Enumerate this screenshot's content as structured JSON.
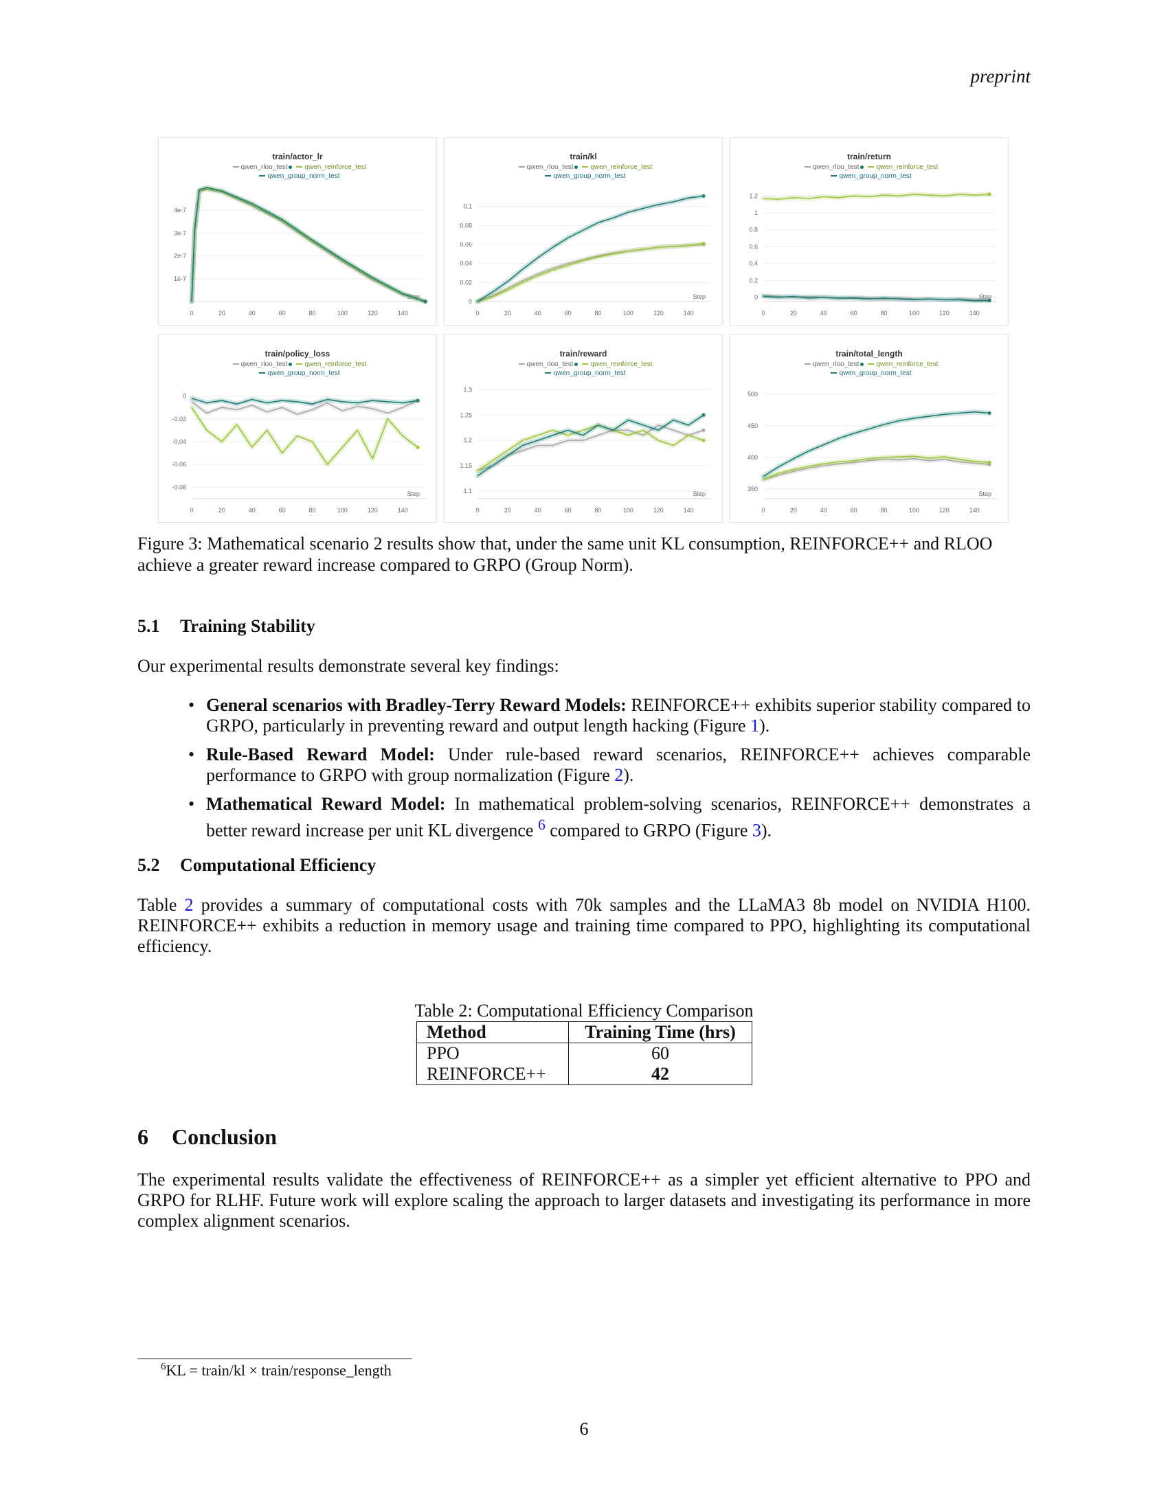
{
  "header": {
    "running_head": "preprint"
  },
  "figure": {
    "legend": {
      "rloo": "qwen_rloo_test",
      "reinforce": "qwen_reinforce_test",
      "group_norm": "qwen_group_norm_test"
    },
    "colors": {
      "rloo": "#a8a8a8",
      "reinforce": "#9cc53d",
      "group_norm": "#1c7d72"
    },
    "step_label": "Step",
    "caption": "Figure 3: Mathematical scenario 2 results show that, under the same unit KL consumption, REINFORCE++ and RLOO achieve a greater reward increase compared to GRPO (Group Norm)."
  },
  "chart_data": [
    {
      "type": "line",
      "title": "train/actor_lr",
      "xlabel": "Step",
      "xlim": [
        0,
        155
      ],
      "ylim": [
        0,
        5e-07
      ],
      "xticks": [
        "0",
        "20",
        "40",
        "60",
        "80",
        "100",
        "120",
        "140"
      ],
      "yticks": [
        1e-07,
        2e-07,
        3e-07,
        4e-07
      ],
      "ytick_labels": [
        "1e-7",
        "2e-7",
        "3e-7",
        "4e-7"
      ],
      "x": [
        0,
        2,
        5,
        10,
        20,
        40,
        60,
        80,
        100,
        120,
        140,
        155
      ],
      "series": [
        {
          "name": "qwen_rloo_test",
          "values": [
            0,
            3e-07,
            4.82e-07,
            4.92e-07,
            4.8e-07,
            4.2e-07,
            3.5e-07,
            2.6e-07,
            1.75e-07,
            9.5e-08,
            3e-08,
            0
          ]
        },
        {
          "name": "qwen_reinforce_test",
          "values": [
            0,
            3.1e-07,
            4.85e-07,
            4.95e-07,
            4.82e-07,
            4.25e-07,
            3.55e-07,
            2.65e-07,
            1.8e-07,
            1e-07,
            3.2e-08,
            0
          ]
        },
        {
          "name": "qwen_group_norm_test",
          "values": [
            0,
            3.2e-07,
            4.9e-07,
            5e-07,
            4.85e-07,
            4.3e-07,
            3.6e-07,
            2.7e-07,
            1.85e-07,
            1.05e-07,
            3.5e-08,
            0
          ]
        }
      ]
    },
    {
      "type": "line",
      "title": "train/kl",
      "xlabel": "Step",
      "xlim": [
        0,
        155
      ],
      "ylim": [
        0,
        0.12
      ],
      "xticks": [
        "0",
        "20",
        "40",
        "60",
        "80",
        "100",
        "120",
        "140"
      ],
      "yticks": [
        0,
        0.02,
        0.04,
        0.06,
        0.08,
        0.1
      ],
      "ytick_labels": [
        "0",
        "0.02",
        "0.04",
        "0.06",
        "0.08",
        "0.1"
      ],
      "x": [
        0,
        10,
        20,
        30,
        40,
        50,
        60,
        70,
        80,
        90,
        100,
        110,
        120,
        130,
        140,
        150
      ],
      "series": [
        {
          "name": "qwen_rloo_test",
          "values": [
            0,
            0.006,
            0.014,
            0.022,
            0.029,
            0.035,
            0.04,
            0.044,
            0.048,
            0.051,
            0.053,
            0.055,
            0.057,
            0.058,
            0.059,
            0.06
          ]
        },
        {
          "name": "qwen_reinforce_test",
          "values": [
            0,
            0.005,
            0.012,
            0.02,
            0.027,
            0.033,
            0.038,
            0.043,
            0.047,
            0.05,
            0.053,
            0.055,
            0.057,
            0.058,
            0.059,
            0.061
          ]
        },
        {
          "name": "qwen_group_norm_test",
          "values": [
            0,
            0.01,
            0.021,
            0.034,
            0.046,
            0.057,
            0.067,
            0.075,
            0.083,
            0.088,
            0.094,
            0.098,
            0.102,
            0.105,
            0.109,
            0.111
          ]
        }
      ]
    },
    {
      "type": "line",
      "title": "train/return",
      "xlabel": "Step",
      "xlim": [
        0,
        155
      ],
      "ylim": [
        -0.05,
        1.3
      ],
      "xticks": [
        "0",
        "20",
        "40",
        "60",
        "80",
        "100",
        "120",
        "140"
      ],
      "yticks": [
        0,
        0.2,
        0.4,
        0.6,
        0.8,
        1,
        1.2
      ],
      "ytick_labels": [
        "0",
        "0.2",
        "0.4",
        "0.6",
        "0.8",
        "1",
        "1.2"
      ],
      "x": [
        0,
        10,
        20,
        30,
        40,
        50,
        60,
        70,
        80,
        90,
        100,
        110,
        120,
        130,
        140,
        150
      ],
      "series": [
        {
          "name": "qwen_rloo_test",
          "values": [
            0.02,
            0.01,
            0.0,
            0.01,
            0.0,
            -0.01,
            0.0,
            -0.01,
            -0.02,
            -0.01,
            -0.02,
            -0.02,
            -0.03,
            -0.02,
            -0.03,
            -0.03
          ]
        },
        {
          "name": "qwen_reinforce_test",
          "values": [
            1.17,
            1.16,
            1.18,
            1.17,
            1.19,
            1.18,
            1.2,
            1.19,
            1.21,
            1.2,
            1.22,
            1.21,
            1.2,
            1.22,
            1.21,
            1.22
          ]
        },
        {
          "name": "qwen_group_norm_test",
          "values": [
            0.01,
            0.0,
            0.01,
            -0.01,
            0.0,
            -0.01,
            -0.01,
            -0.02,
            -0.01,
            -0.02,
            -0.03,
            -0.02,
            -0.03,
            -0.03,
            -0.04,
            -0.04
          ]
        }
      ]
    },
    {
      "type": "line",
      "title": "train/policy_loss",
      "xlabel": "Step",
      "xlim": [
        0,
        155
      ],
      "ylim": [
        -0.09,
        0.01
      ],
      "xticks": [
        "0",
        "20",
        "40",
        "60",
        "80",
        "100",
        "120",
        "140"
      ],
      "yticks": [
        0,
        -0.02,
        -0.04,
        -0.06,
        -0.08
      ],
      "ytick_labels": [
        "0",
        "-0.02",
        "-0.04",
        "-0.06",
        "-0.08"
      ],
      "x": [
        0,
        10,
        20,
        30,
        40,
        50,
        60,
        70,
        80,
        90,
        100,
        110,
        120,
        130,
        140,
        150
      ],
      "series": [
        {
          "name": "qwen_rloo_test",
          "values": [
            -0.005,
            -0.015,
            -0.01,
            -0.012,
            -0.008,
            -0.014,
            -0.01,
            -0.016,
            -0.012,
            -0.006,
            -0.013,
            -0.009,
            -0.011,
            -0.015,
            -0.01,
            -0.004
          ]
        },
        {
          "name": "qwen_reinforce_test",
          "values": [
            -0.01,
            -0.03,
            -0.04,
            -0.025,
            -0.045,
            -0.03,
            -0.05,
            -0.035,
            -0.04,
            -0.06,
            -0.045,
            -0.03,
            -0.055,
            -0.02,
            -0.035,
            -0.045
          ]
        },
        {
          "name": "qwen_group_norm_test",
          "values": [
            -0.002,
            -0.006,
            -0.004,
            -0.007,
            -0.003,
            -0.006,
            -0.004,
            -0.005,
            -0.007,
            -0.003,
            -0.005,
            -0.006,
            -0.004,
            -0.005,
            -0.006,
            -0.004
          ]
        }
      ]
    },
    {
      "type": "line",
      "title": "train/reward",
      "xlabel": "Step",
      "xlim": [
        0,
        155
      ],
      "ylim": [
        1.085,
        1.31
      ],
      "xticks": [
        "0",
        "20",
        "40",
        "60",
        "80",
        "100",
        "120",
        "140"
      ],
      "yticks": [
        1.1,
        1.15,
        1.2,
        1.25,
        1.3
      ],
      "ytick_labels": [
        "1.1",
        "1.15",
        "1.2",
        "1.25",
        "1.3"
      ],
      "x": [
        0,
        10,
        20,
        30,
        40,
        50,
        60,
        70,
        80,
        90,
        100,
        110,
        120,
        130,
        140,
        150
      ],
      "series": [
        {
          "name": "qwen_rloo_test",
          "values": [
            1.14,
            1.15,
            1.17,
            1.18,
            1.19,
            1.19,
            1.2,
            1.2,
            1.21,
            1.22,
            1.22,
            1.21,
            1.23,
            1.22,
            1.21,
            1.22
          ]
        },
        {
          "name": "qwen_reinforce_test",
          "values": [
            1.14,
            1.16,
            1.18,
            1.2,
            1.21,
            1.22,
            1.21,
            1.22,
            1.23,
            1.22,
            1.21,
            1.22,
            1.2,
            1.19,
            1.21,
            1.2
          ]
        },
        {
          "name": "qwen_group_norm_test",
          "values": [
            1.13,
            1.15,
            1.17,
            1.19,
            1.2,
            1.21,
            1.22,
            1.21,
            1.23,
            1.22,
            1.24,
            1.23,
            1.22,
            1.24,
            1.23,
            1.25
          ]
        }
      ]
    },
    {
      "type": "line",
      "title": "train/total_length",
      "xlabel": "Step",
      "xlim": [
        0,
        155
      ],
      "ylim": [
        335,
        515
      ],
      "xticks": [
        "0",
        "20",
        "40",
        "60",
        "80",
        "100",
        "120",
        "140"
      ],
      "yticks": [
        350,
        400,
        450,
        500
      ],
      "ytick_labels": [
        "350",
        "400",
        "450",
        "500"
      ],
      "x": [
        0,
        10,
        20,
        30,
        40,
        50,
        60,
        70,
        80,
        90,
        100,
        110,
        120,
        130,
        140,
        150
      ],
      "series": [
        {
          "name": "qwen_rloo_test",
          "values": [
            365,
            372,
            378,
            383,
            387,
            390,
            392,
            395,
            397,
            396,
            398,
            395,
            397,
            393,
            391,
            389
          ]
        },
        {
          "name": "qwen_reinforce_test",
          "values": [
            365,
            375,
            381,
            386,
            390,
            393,
            395,
            398,
            400,
            401,
            402,
            399,
            401,
            397,
            394,
            392
          ]
        },
        {
          "name": "qwen_group_norm_test",
          "values": [
            370,
            385,
            398,
            410,
            420,
            430,
            438,
            445,
            452,
            458,
            462,
            465,
            468,
            470,
            472,
            470
          ]
        }
      ]
    }
  ],
  "section_5_1": {
    "number": "5.1",
    "title": "Training Stability",
    "intro": "Our experimental results demonstrate several key findings:",
    "bullets": [
      {
        "bold": "General scenarios with Bradley-Terry Reward Models:",
        "text": " REINFORCE++ exhibits superior stability compared to GRPO, particularly in preventing reward and output length hacking (Figure ",
        "ref": "1",
        "tail": ")."
      },
      {
        "bold": "Rule-Based Reward Model:",
        "text": " Under rule-based reward scenarios, REINFORCE++ achieves comparable performance to GRPO with group normalization (Figure ",
        "ref": "2",
        "tail": ")."
      },
      {
        "bold": "Mathematical Reward Model:",
        "text": " In mathematical problem-solving scenarios, REINFORCE++ demonstrates a better reward increase per unit KL divergence ",
        "footnote_mark": "6",
        "text2": " compared to GRPO (Figure ",
        "ref": "3",
        "tail": ")."
      }
    ]
  },
  "section_5_2": {
    "number": "5.2",
    "title": "Computational Efficiency",
    "p_pre": "Table ",
    "p_ref": "2",
    "p_post": " provides a summary of computational costs with 70k samples and the LLaMA3 8b model on NVIDIA H100. REINFORCE++ exhibits a reduction in memory usage and training time compared to PPO, highlighting its computational efficiency."
  },
  "table2": {
    "caption": "Table 2: Computational Efficiency Comparison",
    "headers": [
      "Method",
      "Training Time (hrs)"
    ],
    "rows": [
      [
        "PPO",
        "60"
      ],
      [
        "REINFORCE++",
        "42"
      ]
    ]
  },
  "section_6": {
    "number": "6",
    "title": "Conclusion",
    "text": "The experimental results validate the effectiveness of REINFORCE++ as a simpler yet efficient alternative to PPO and GRPO for RLHF. Future work will explore scaling the approach to larger datasets and investigating its performance in more complex alignment scenarios."
  },
  "footnote": {
    "mark": "6",
    "text": "KL = train/kl × train/response_length"
  },
  "page_number": "6"
}
